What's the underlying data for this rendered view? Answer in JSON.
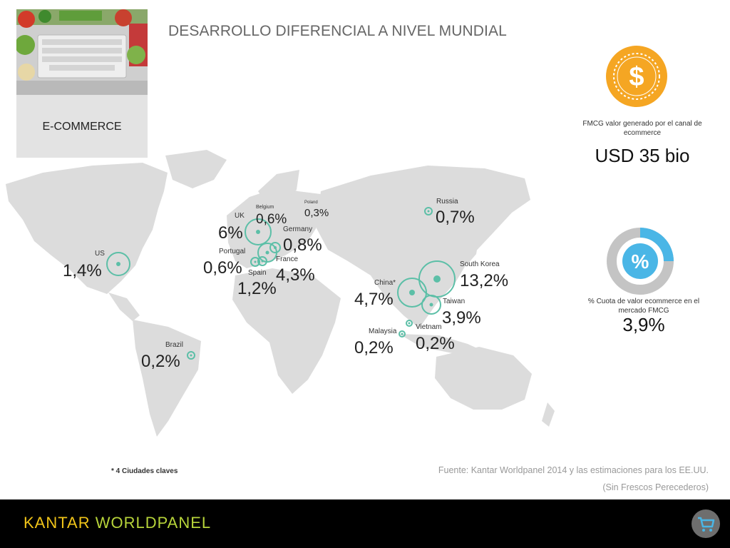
{
  "title": "DESARROLLO DIFERENCIAL A NIVEL MUNDIAL",
  "section_label": "E-COMMERCE",
  "countries": [
    {
      "label": "US",
      "value": "1,4%"
    },
    {
      "label": "Brazil",
      "value": "0,2%"
    },
    {
      "label": "UK",
      "value": "6%"
    },
    {
      "label": "Belgium",
      "value": "0,6%"
    },
    {
      "label": "Poland",
      "value": "0,3%"
    },
    {
      "label": "Germany",
      "value": "0,8%"
    },
    {
      "label": "Portugal",
      "value": "0,6%"
    },
    {
      "label": "France",
      "value": "4,3%"
    },
    {
      "label": "Spain",
      "value": "1,2%"
    },
    {
      "label": "Russia",
      "value": "0,7%"
    },
    {
      "label": "China*",
      "value": "4,7%"
    },
    {
      "label": "South Korea",
      "value": "13,2%"
    },
    {
      "label": "Taiwan",
      "value": "3,9%"
    },
    {
      "label": "Vietnam",
      "value": "0,2%"
    },
    {
      "label": "Malaysia",
      "value": "0,2%"
    }
  ],
  "fmcg_value": {
    "description": "FMCG valor generado por el canal de ecommerce",
    "value": "USD 35 bio",
    "icon": "dollar-coin-icon"
  },
  "share": {
    "description": "% Cuota de valor ecommerce en el mercado FMCG",
    "value": "3,9%",
    "fraction": 0.25,
    "icon": "percent-donut-icon"
  },
  "footnote": "* 4 Ciudades claves",
  "source": "Fuente: Kantar Worldpanel 2014 y las estimaciones para los EE.UU.",
  "source_note": "(Sin Frescos Perecederos)",
  "brand": {
    "part1": "KANTAR ",
    "part2": "WORLDPANEL"
  },
  "colors": {
    "marker": "#5cbfa7",
    "coin": "#f5a623",
    "donut_accent": "#4ab6e6",
    "footer": "#000000"
  }
}
